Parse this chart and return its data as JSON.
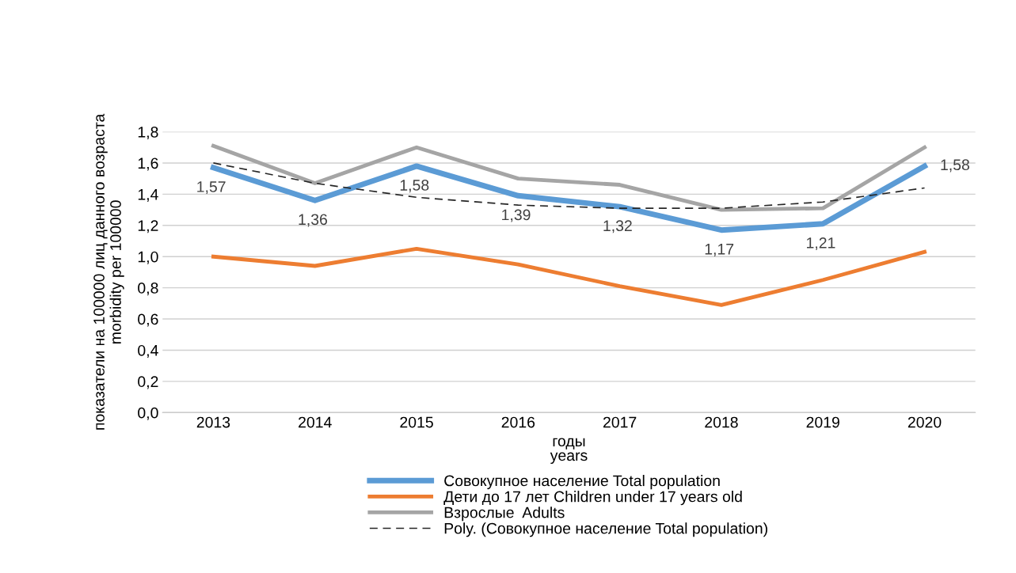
{
  "chart_data": {
    "type": "line",
    "xlabel": "годы\nyears",
    "ylabel": "показатели на 100000 лиц данного возраста\nmorbidity per 100000",
    "categories": [
      "2013",
      "2014",
      "2015",
      "2016",
      "2017",
      "2018",
      "2019",
      "2020"
    ],
    "ylim": [
      0,
      1.8
    ],
    "yticks": [
      {
        "value": 0,
        "label": "0,0"
      },
      {
        "value": 0.2,
        "label": "0,2"
      },
      {
        "value": 0.4,
        "label": "0,4"
      },
      {
        "value": 0.6,
        "label": "0,6"
      },
      {
        "value": 0.8,
        "label": "0,8"
      },
      {
        "value": 1.0,
        "label": "1,0"
      },
      {
        "value": 1.2,
        "label": "1,2"
      },
      {
        "value": 1.4,
        "label": "1,4"
      },
      {
        "value": 1.6,
        "label": "1,6"
      },
      {
        "value": 1.8,
        "label": "1,8"
      }
    ],
    "grid": "y",
    "legend": "bottom",
    "marker": "none",
    "series": [
      {
        "name": "Совокупное население Total population",
        "color": "#5b9bd5",
        "values": [
          1.57,
          1.36,
          1.58,
          1.39,
          1.32,
          1.17,
          1.21,
          1.58
        ],
        "value_labels": [
          "1,57",
          "1,36",
          "1,58",
          "1,39",
          "1,32",
          "1,17",
          "1,21",
          "1,58"
        ]
      },
      {
        "name": "Дети до 17 лет Children under 17 years old",
        "color": "#ed7d31",
        "values": [
          1.0,
          0.94,
          1.05,
          0.95,
          0.81,
          0.69,
          0.85,
          1.03
        ]
      },
      {
        "name": "Взрослые  Adults",
        "color": "#a5a5a5",
        "values": [
          1.71,
          1.47,
          1.7,
          1.5,
          1.46,
          1.3,
          1.31,
          1.7
        ]
      },
      {
        "name": "Poly. (Совокупное население Total population)",
        "color": "#262626",
        "line_style": "dashed",
        "values": [
          1.6,
          1.47,
          1.38,
          1.33,
          1.31,
          1.31,
          1.35,
          1.44
        ]
      }
    ]
  }
}
